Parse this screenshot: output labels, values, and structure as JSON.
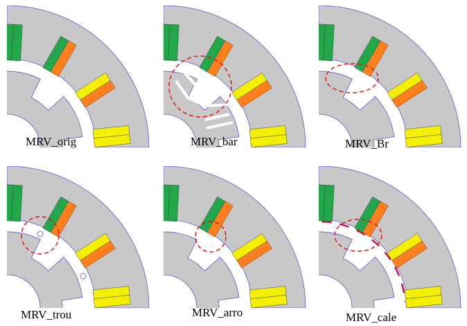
{
  "panels": [
    {
      "caption": "MRV_orig",
      "variant": "orig",
      "highlighted": false
    },
    {
      "caption": "MRV_bar",
      "variant": "bar",
      "highlighted": true
    },
    {
      "caption": "MRV_Br",
      "variant": "Br",
      "highlighted": true
    },
    {
      "caption": "MRV_trou",
      "variant": "trou",
      "highlighted": true
    },
    {
      "caption": "MRV_arro",
      "variant": "arro",
      "highlighted": true
    },
    {
      "caption": "MRV_cale",
      "variant": "cale",
      "highlighted": true
    }
  ],
  "colors": {
    "iron": "#c8c8c8",
    "outline": "#5a5ac8",
    "phase_green": "#22a84a",
    "phase_orange": "#ff7f1e",
    "phase_yellow": "#f4f000",
    "highlight": "#e01414",
    "wedge": "#c8104a"
  }
}
